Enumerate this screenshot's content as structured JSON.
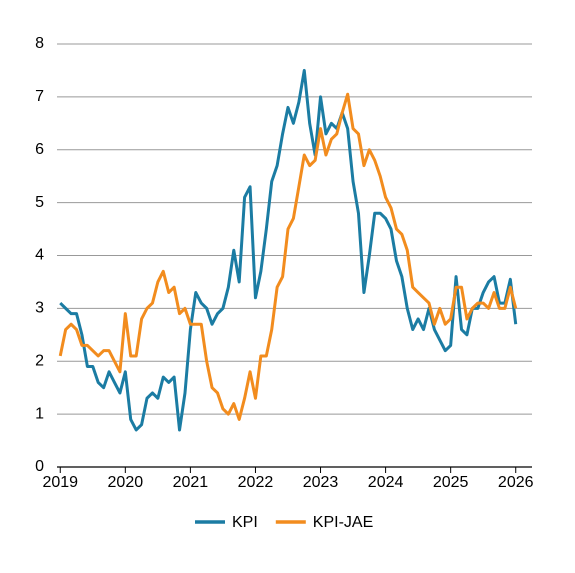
{
  "chart_data": {
    "type": "line",
    "x": [
      2019,
      2019.083,
      2019.167,
      2019.25,
      2019.333,
      2019.417,
      2019.5,
      2019.583,
      2019.667,
      2019.75,
      2019.833,
      2019.917,
      2020,
      2020.083,
      2020.167,
      2020.25,
      2020.333,
      2020.417,
      2020.5,
      2020.583,
      2020.667,
      2020.75,
      2020.833,
      2020.917,
      2021,
      2021.083,
      2021.167,
      2021.25,
      2021.333,
      2021.417,
      2021.5,
      2021.583,
      2021.667,
      2021.75,
      2021.833,
      2021.917,
      2022,
      2022.083,
      2022.167,
      2022.25,
      2022.333,
      2022.417,
      2022.5,
      2022.583,
      2022.667,
      2022.75,
      2022.833,
      2022.917,
      2023,
      2023.083,
      2023.167,
      2023.25,
      2023.333,
      2023.417,
      2023.5,
      2023.583,
      2023.667,
      2023.75,
      2023.833,
      2023.917,
      2024,
      2024.083,
      2024.167,
      2024.25,
      2024.333,
      2024.417,
      2024.5,
      2024.583,
      2024.667,
      2024.75,
      2024.833,
      2024.917,
      2025,
      2025.083,
      2025.167,
      2025.25,
      2025.333,
      2025.417,
      2025.5,
      2025.583,
      2025.667,
      2025.75,
      2025.833,
      2025.917,
      2026
    ],
    "series": [
      {
        "name": "KPI",
        "color": "#1b7ca3",
        "values": [
          3.1,
          3.0,
          2.9,
          2.9,
          2.5,
          1.9,
          1.9,
          1.6,
          1.5,
          1.8,
          1.6,
          1.4,
          1.8,
          0.9,
          0.7,
          0.8,
          1.3,
          1.4,
          1.3,
          1.7,
          1.6,
          1.7,
          0.7,
          1.4,
          2.6,
          3.3,
          3.1,
          3.0,
          2.7,
          2.9,
          3.0,
          3.4,
          4.1,
          3.5,
          5.1,
          5.3,
          3.2,
          3.7,
          4.5,
          5.4,
          5.7,
          6.3,
          6.8,
          6.5,
          6.9,
          7.5,
          6.5,
          5.9,
          7.0,
          6.3,
          6.5,
          6.4,
          6.7,
          6.4,
          5.4,
          4.8,
          3.3,
          4.0,
          4.8,
          4.8,
          4.7,
          4.5,
          3.9,
          3.6,
          3.0,
          2.6,
          2.8,
          2.6,
          3.0,
          2.6,
          2.4,
          2.2,
          2.3,
          3.6,
          2.6,
          2.5,
          3.0,
          3.0,
          3.3,
          3.5,
          3.6,
          3.1,
          3.1,
          3.55,
          2.7
        ]
      },
      {
        "name": "KPI-JAE",
        "color": "#f28c1e",
        "values": [
          2.1,
          2.6,
          2.7,
          2.6,
          2.3,
          2.3,
          2.2,
          2.1,
          2.2,
          2.2,
          2.0,
          1.8,
          2.9,
          2.1,
          2.1,
          2.8,
          3.0,
          3.1,
          3.5,
          3.7,
          3.3,
          3.4,
          2.9,
          3.0,
          2.7,
          2.7,
          2.7,
          2.0,
          1.5,
          1.4,
          1.1,
          1.0,
          1.2,
          0.9,
          1.3,
          1.8,
          1.3,
          2.1,
          2.1,
          2.6,
          3.4,
          3.6,
          4.5,
          4.7,
          5.3,
          5.9,
          5.7,
          5.8,
          6.4,
          5.9,
          6.2,
          6.3,
          6.7,
          7.05,
          6.4,
          6.3,
          5.7,
          6.0,
          5.8,
          5.5,
          5.1,
          4.9,
          4.5,
          4.4,
          4.1,
          3.4,
          3.3,
          3.2,
          3.1,
          2.7,
          3.0,
          2.7,
          2.8,
          3.4,
          3.4,
          2.8,
          3.0,
          3.1,
          3.1,
          3.0,
          3.3,
          3.0,
          3.0,
          3.4,
          3.0
        ]
      }
    ],
    "xlim": [
      2018.95,
      2026.25
    ],
    "xticks": [
      2019,
      2020,
      2021,
      2022,
      2023,
      2024,
      2025,
      2026
    ],
    "ylim": [
      0,
      8
    ],
    "yticks": [
      0,
      1,
      2,
      3,
      4,
      5,
      6,
      7,
      8
    ],
    "grid": true
  }
}
